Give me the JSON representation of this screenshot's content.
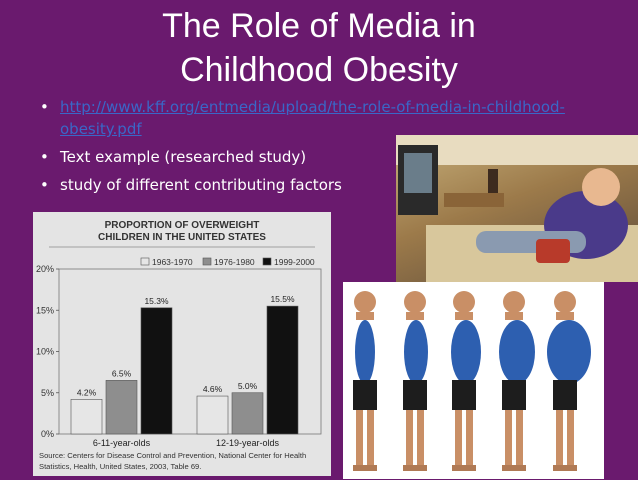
{
  "slide": {
    "title_line1": "The Role of Media in",
    "title_line2": "Childhood Obesity",
    "bullets": [
      {
        "text": "http://www.kff.org/entmedia/upload/the-role-of-media-in-childhood-obesity.pdf",
        "is_link": true
      },
      {
        "text": "Text example (researched study)",
        "is_link": false
      },
      {
        "text": "study of different contributing factors",
        "is_link": false
      }
    ]
  },
  "chart_data": {
    "type": "bar",
    "title": "PROPORTION OF OVERWEIGHT CHILDREN IN THE UNITED STATES",
    "categories": [
      "6-11-year-olds",
      "12-19-year-olds"
    ],
    "series": [
      {
        "name": "1963-1970",
        "values": [
          4.2,
          4.6
        ],
        "labels": [
          "4.2%",
          "4.6%"
        ],
        "color": "#e6e6e6"
      },
      {
        "name": "1976-1980",
        "values": [
          6.5,
          5.0
        ],
        "labels": [
          "6.5%",
          "5.0%"
        ],
        "color": "#8e8e8e"
      },
      {
        "name": "1999-2000",
        "values": [
          15.3,
          15.5
        ],
        "labels": [
          "15.3%",
          "15.5%"
        ],
        "color": "#111111"
      }
    ],
    "y_ticks": [
      "0%",
      "5%",
      "10%",
      "15%",
      "20%"
    ],
    "ylim": [
      0,
      20
    ],
    "legend_position": "top-right",
    "source": "Source: Centers for Disease Control and Prevention, National Center for Health Statistics, Health, United States, 2003, Table 69."
  },
  "images": {
    "photo_tv": "boy-eating-watching-tv",
    "photo_silhouettes": "five-boys-progressive-weight"
  }
}
